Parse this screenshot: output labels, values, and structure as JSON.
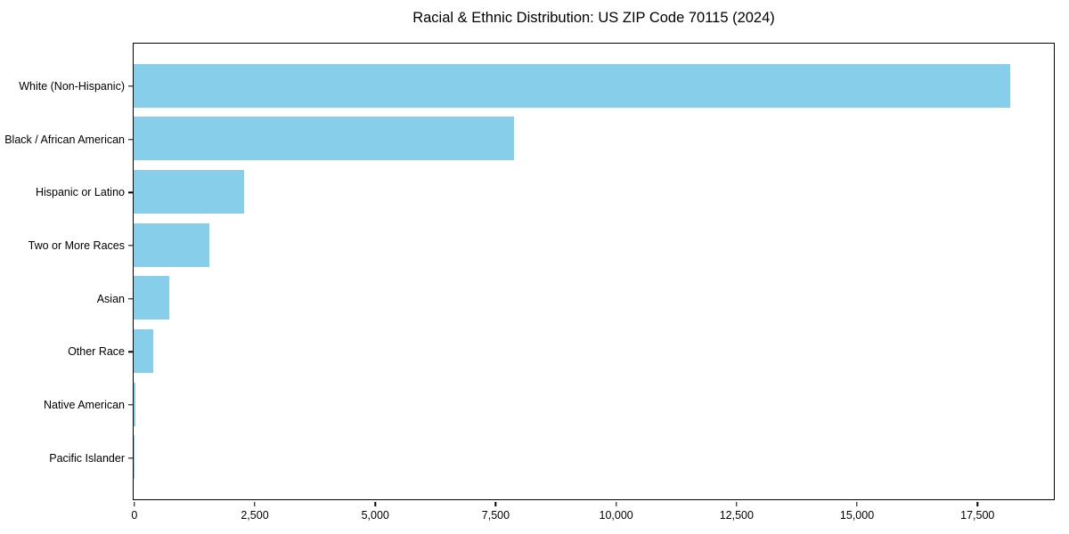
{
  "figure": {
    "background": "#ffffff"
  },
  "chart_data": {
    "type": "bar",
    "orientation": "horizontal",
    "title": "Racial & Ethnic Distribution: US ZIP Code 70115 (2024)",
    "categories": [
      "White (Non-Hispanic)",
      "Black / African American",
      "Hispanic or Latino",
      "Two or More Races",
      "Asian",
      "Other Race",
      "Native American",
      "Pacific Islander"
    ],
    "values": [
      18200,
      7900,
      2300,
      1570,
      740,
      410,
      30,
      12
    ],
    "xlabel": "",
    "ylabel": "",
    "xlim": [
      0,
      19100
    ],
    "xticks": [
      {
        "value": 0,
        "label": "0"
      },
      {
        "value": 2500,
        "label": "2,500"
      },
      {
        "value": 5000,
        "label": "5,000"
      },
      {
        "value": 7500,
        "label": "7,500"
      },
      {
        "value": 10000,
        "label": "10,000"
      },
      {
        "value": 12500,
        "label": "12,500"
      },
      {
        "value": 15000,
        "label": "15,000"
      },
      {
        "value": 17500,
        "label": "17,500"
      }
    ],
    "bar_color": "#87ceeb",
    "axis_color": "#000000",
    "text_color": "#000000",
    "grid": false,
    "legend": null
  }
}
